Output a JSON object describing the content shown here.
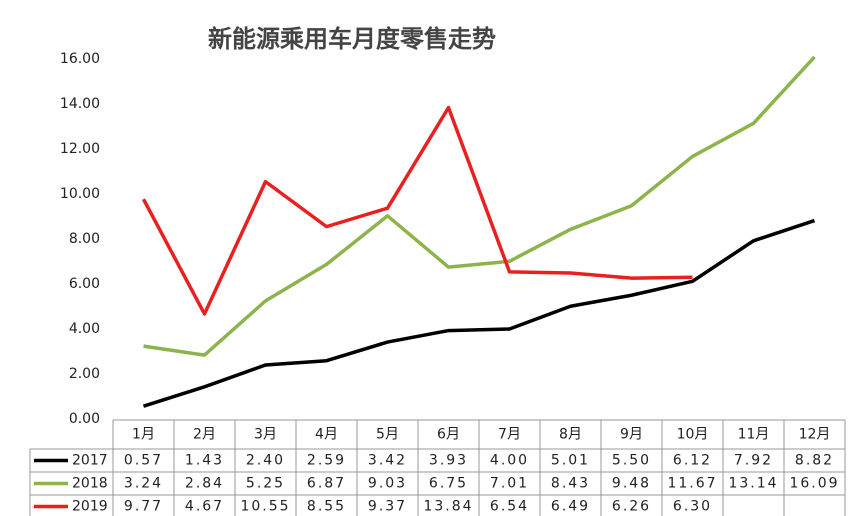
{
  "chart_data": {
    "type": "line",
    "title": "新能源乘用车月度零售走势",
    "categories": [
      "1月",
      "2月",
      "3月",
      "4月",
      "5月",
      "6月",
      "7月",
      "8月",
      "9月",
      "10月",
      "11月",
      "12月"
    ],
    "series": [
      {
        "name": "2017",
        "color": "#000000",
        "values": [
          0.57,
          1.43,
          2.4,
          2.59,
          3.42,
          3.93,
          4.0,
          5.01,
          5.5,
          6.12,
          7.92,
          8.82
        ],
        "value_labels": [
          "0.57",
          "1.43",
          "2.40",
          "2.59",
          "3.42",
          "3.93",
          "4.00",
          "5.01",
          "5.50",
          "6.12",
          "7.92",
          "8.82"
        ]
      },
      {
        "name": "2018",
        "color": "#8db44b",
        "values": [
          3.24,
          2.84,
          5.25,
          6.87,
          9.03,
          6.75,
          7.01,
          8.43,
          9.48,
          11.67,
          13.14,
          16.09
        ],
        "value_labels": [
          "3.24",
          "2.84",
          "5.25",
          "6.87",
          "9.03",
          "6.75",
          "7.01",
          "8.43",
          "9.48",
          "11.67",
          "13.14",
          "16.09"
        ]
      },
      {
        "name": "2019",
        "color": "#e8201f",
        "values": [
          9.77,
          4.67,
          10.55,
          8.55,
          9.37,
          13.84,
          6.54,
          6.49,
          6.26,
          6.3,
          null,
          null
        ],
        "value_labels": [
          "9.77",
          "4.67",
          "10.55",
          "8.55",
          "9.37",
          "13.84",
          "6.54",
          "6.49",
          "6.26",
          "6.30",
          null,
          null
        ]
      }
    ],
    "ylim": [
      0,
      16
    ],
    "yticks": [
      {
        "value": 0,
        "label": "0.00"
      },
      {
        "value": 2,
        "label": "2.00"
      },
      {
        "value": 4,
        "label": "4.00"
      },
      {
        "value": 6,
        "label": "6.00"
      },
      {
        "value": 8,
        "label": "8.00"
      },
      {
        "value": 10,
        "label": "10.00"
      },
      {
        "value": 12,
        "label": "12.00"
      },
      {
        "value": 14,
        "label": "14.00"
      },
      {
        "value": 16,
        "label": "16.00"
      }
    ],
    "grid": false,
    "data_table": true
  }
}
